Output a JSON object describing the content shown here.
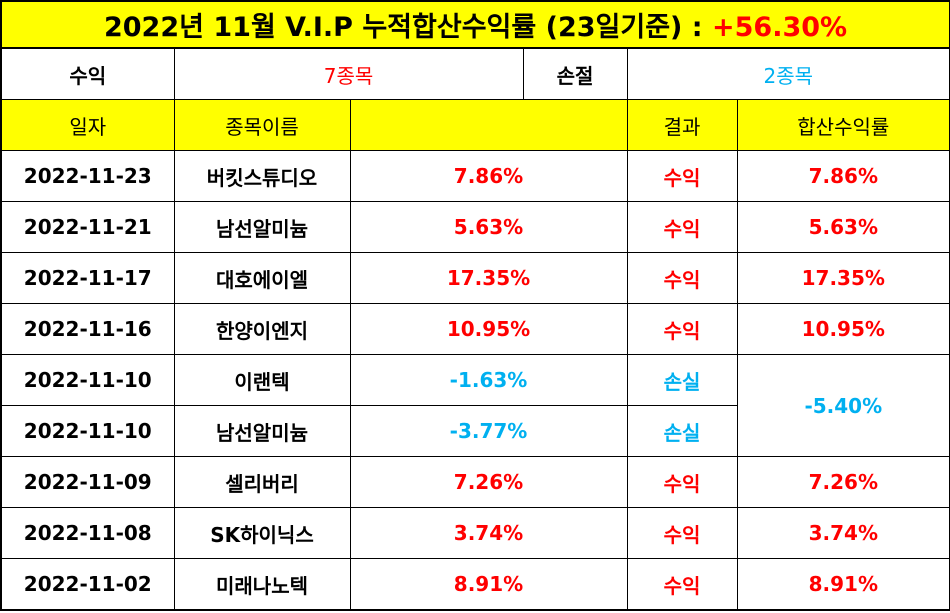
{
  "title": {
    "text": "2022년 11월 V.I.P 누적합산수익률 (23일기준) : ",
    "total": "+56.30%"
  },
  "summary": {
    "profit_label": "수익",
    "profit_count": "7종목",
    "loss_label": "손절",
    "loss_count": "2종목"
  },
  "headers": {
    "date": "일자",
    "name": "종목이름",
    "blank": "",
    "result": "결과",
    "combined": "합산수익률"
  },
  "rows": [
    {
      "date": "2022-11-23",
      "name": "버킷스튜디오",
      "pct": "7.86%",
      "result": "수익",
      "combined": "7.86%"
    },
    {
      "date": "2022-11-21",
      "name": "남선알미늄",
      "pct": "5.63%",
      "result": "수익",
      "combined": "5.63%"
    },
    {
      "date": "2022-11-17",
      "name": "대호에이엘",
      "pct": "17.35%",
      "result": "수익",
      "combined": "17.35%"
    },
    {
      "date": "2022-11-16",
      "name": "한양이엔지",
      "pct": "10.95%",
      "result": "수익",
      "combined": "10.95%"
    },
    {
      "date": "2022-11-10",
      "name": "이랜텍",
      "pct": "-1.63%",
      "result": "손실",
      "combined": "-5.40%"
    },
    {
      "date": "2022-11-10",
      "name": "남선알미늄",
      "pct": "-3.77%",
      "result": "손실",
      "combined": ""
    },
    {
      "date": "2022-11-09",
      "name": "셀리버리",
      "pct": "7.26%",
      "result": "수익",
      "combined": "7.26%"
    },
    {
      "date": "2022-11-08",
      "name": "SK하이닉스",
      "pct": "3.74%",
      "result": "수익",
      "combined": "3.74%"
    },
    {
      "date": "2022-11-02",
      "name": "미래나노텍",
      "pct": "8.91%",
      "result": "수익",
      "combined": "8.91%"
    }
  ],
  "colors": {
    "header_bg": "#ffff00",
    "profit": "#ff0000",
    "loss": "#00b0f0"
  }
}
